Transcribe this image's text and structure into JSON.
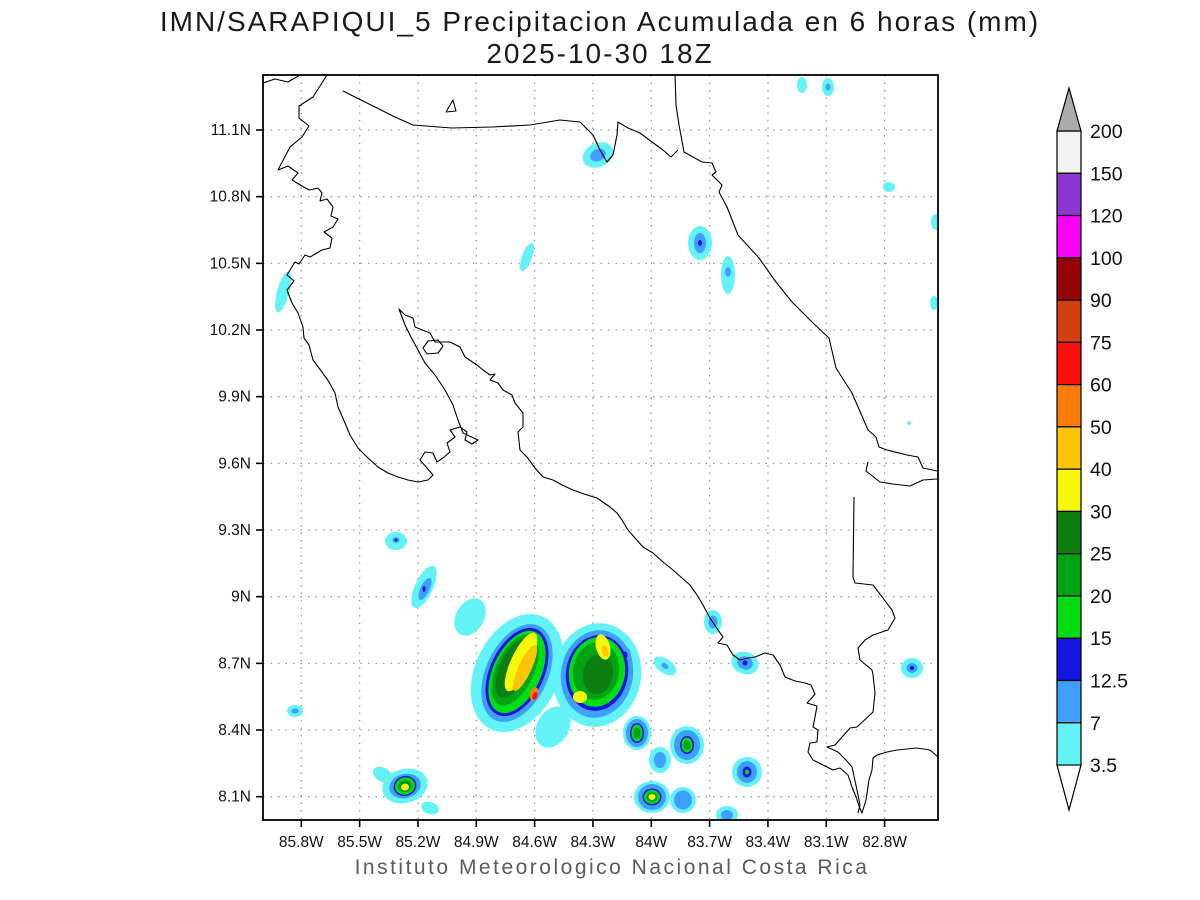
{
  "header": {
    "title": "IMN/SARAPIQUI_5 Precipitacion Acumulada en 6 horas (mm)",
    "subtitle": "2025-10-30 18Z"
  },
  "footer": {
    "credit": "Instituto Meteorologico Nacional Costa Rica"
  },
  "axes": {
    "lat_ticks": [
      "11.1N",
      "10.8N",
      "10.5N",
      "10.2N",
      "9.9N",
      "9.6N",
      "9.3N",
      "9N",
      "8.7N",
      "8.4N",
      "8.1N"
    ],
    "lon_ticks": [
      "85.8W",
      "85.5W",
      "85.2W",
      "84.9W",
      "84.6W",
      "84.3W",
      "84W",
      "83.7W",
      "83.4W",
      "83.1W",
      "82.8W"
    ]
  },
  "colorbar": {
    "labels_top_to_bottom": [
      "200",
      "150",
      "120",
      "100",
      "90",
      "75",
      "60",
      "50",
      "40",
      "30",
      "25",
      "20",
      "15",
      "12.5",
      "7",
      "3.5"
    ],
    "colors_top_to_bottom": [
      "#f2f2f2",
      "#8c35cf",
      "#fa02fa",
      "#930404",
      "#d2400f",
      "#fb1010",
      "#fc7d09",
      "#fcc40a",
      "#f8f80b",
      "#0e7e12",
      "#00a312",
      "#00dd11",
      "#1515e0",
      "#3f9fff",
      "#63f3f6"
    ],
    "above_max_color": "#ababab",
    "below_min_color": "#ffffff"
  },
  "palette": {
    "c35": "#63f3f6",
    "c7": "#3f9fff",
    "c125": "#1515e0",
    "c15": "#00dd11",
    "c20": "#00a312",
    "c25": "#0e7e12",
    "c30": "#f8f80b",
    "c40": "#fcc40a",
    "c50": "#fc7d09",
    "c60": "#fb1010"
  },
  "map": {
    "line_color": "#000000",
    "grid_color": "#9a9a9a",
    "background": "#ffffff"
  },
  "chart_data": {
    "type": "heatmap",
    "subtype": "filled-contour-precipitation-map",
    "title": "IMN/SARAPIQUI_5 Precipitacion Acumulada en 6 horas (mm)",
    "valid_time": "2025-10-30 18Z",
    "region": "Costa Rica",
    "xlabel_ticks_lon_W": [
      85.8,
      85.5,
      85.2,
      84.9,
      84.6,
      84.3,
      84.0,
      83.7,
      83.4,
      83.1,
      82.8
    ],
    "ylabel_ticks_lat_N": [
      11.1,
      10.8,
      10.5,
      10.2,
      9.9,
      9.6,
      9.3,
      9.0,
      8.7,
      8.4,
      8.1
    ],
    "lon_range_W": [
      86.0,
      82.52
    ],
    "lat_range_N": [
      8.0,
      11.35
    ],
    "contour_levels_mm": [
      3.5,
      7,
      12.5,
      15,
      20,
      25,
      30,
      40,
      50,
      60,
      75,
      90,
      100,
      120,
      150,
      200
    ],
    "grid": true,
    "legend_position": "right",
    "precip_cells": [
      {
        "lon_W": 84.6,
        "lat_N": 8.55,
        "peak_band_mm": "60-75",
        "note": "strongest cell, elongated SW-NE, red core"
      },
      {
        "lon_W": 84.25,
        "lat_N": 8.76,
        "peak_band_mm": "40-50",
        "note": "second cell with two yellow maxima"
      },
      {
        "lon_W": 85.27,
        "lat_N": 8.15,
        "peak_band_mm": "30-40"
      },
      {
        "lon_W": 84.0,
        "lat_N": 8.1,
        "peak_band_mm": "30-40"
      },
      {
        "lon_W": 83.87,
        "lat_N": 8.39,
        "peak_band_mm": "15-20"
      },
      {
        "lon_W": 83.62,
        "lat_N": 8.21,
        "peak_band_mm": "12.5-15"
      },
      {
        "lon_W": 83.32,
        "lat_N": 8.43,
        "peak_band_mm": "3.5-7"
      },
      {
        "lon_W": 84.55,
        "lat_N": 10.74,
        "peak_band_mm": "7-12.5"
      },
      {
        "lon_W": 84.02,
        "lat_N": 10.34,
        "peak_band_mm": "7-12.5"
      },
      {
        "lon_W": 83.88,
        "lat_N": 10.2,
        "peak_band_mm": "3.5-7"
      },
      {
        "lon_W": 85.12,
        "lat_N": 9.0,
        "peak_band_mm": "7-12.5"
      },
      {
        "lon_W": 85.27,
        "lat_N": 9.25,
        "peak_band_mm": "3.5-7"
      },
      {
        "lon_W": 82.92,
        "lat_N": 8.45,
        "peak_band_mm": "7-12.5"
      }
    ]
  }
}
